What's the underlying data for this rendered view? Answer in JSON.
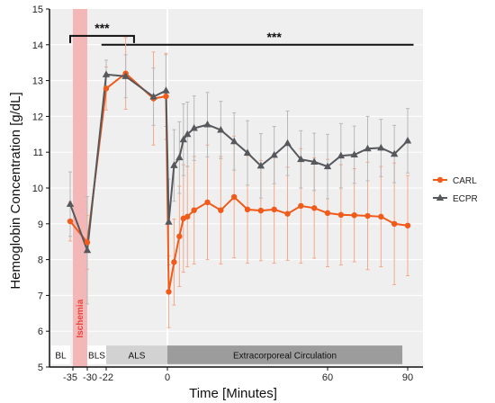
{
  "chart_data": {
    "type": "line",
    "xlabel": "Time  [Minutes]",
    "ylabel": "Hemoglobin Concentration [g/dL]",
    "ylim": [
      5,
      15
    ],
    "y_ticks": [
      5,
      6,
      7,
      8,
      9,
      10,
      11,
      12,
      13,
      14,
      15
    ],
    "x_tick_labels": [
      {
        "t": -35,
        "label": "-35"
      },
      {
        "t": -30,
        "label": "-30"
      },
      {
        "t": -22,
        "label": "-22"
      },
      {
        "t": 0,
        "label": "0"
      },
      {
        "t": 60,
        "label": "60"
      },
      {
        "t": 90,
        "label": "90"
      }
    ],
    "grid": true,
    "legend_position": "right",
    "series": [
      {
        "name": "CARL",
        "color": "#f05a1a",
        "marker": "circle",
        "points": [
          {
            "t": -36,
            "y": 9.07,
            "sd": 0.55
          },
          {
            "t": -30,
            "y": 8.48,
            "sd": 0.75
          },
          {
            "t": -22,
            "y": 12.78,
            "sd": 0.6
          },
          {
            "t": -15,
            "y": 13.2,
            "sd": 1.0
          },
          {
            "t": -5,
            "y": 12.5,
            "sd": 1.3
          },
          {
            "t": -0.5,
            "y": 12.56,
            "sd": 1.2
          },
          {
            "t": 0.5,
            "y": 7.1,
            "sd": 1.0
          },
          {
            "t": 2.5,
            "y": 7.93,
            "sd": 1.2
          },
          {
            "t": 4.5,
            "y": 8.65,
            "sd": 1.4
          },
          {
            "t": 6,
            "y": 9.15,
            "sd": 1.5
          },
          {
            "t": 7.5,
            "y": 9.2,
            "sd": 1.4
          },
          {
            "t": 10,
            "y": 9.38,
            "sd": 1.5
          },
          {
            "t": 15,
            "y": 9.6,
            "sd": 1.6
          },
          {
            "t": 20,
            "y": 9.38,
            "sd": 1.5
          },
          {
            "t": 25,
            "y": 9.75,
            "sd": 1.7
          },
          {
            "t": 30,
            "y": 9.4,
            "sd": 1.5
          },
          {
            "t": 35,
            "y": 9.37,
            "sd": 1.4
          },
          {
            "t": 40,
            "y": 9.4,
            "sd": 1.5
          },
          {
            "t": 45,
            "y": 9.28,
            "sd": 1.3
          },
          {
            "t": 50,
            "y": 9.5,
            "sd": 1.6
          },
          {
            "t": 55,
            "y": 9.44,
            "sd": 1.4
          },
          {
            "t": 60,
            "y": 9.3,
            "sd": 1.5
          },
          {
            "t": 65,
            "y": 9.25,
            "sd": 1.4
          },
          {
            "t": 70,
            "y": 9.24,
            "sd": 1.3
          },
          {
            "t": 75,
            "y": 9.22,
            "sd": 1.5
          },
          {
            "t": 80,
            "y": 9.2,
            "sd": 1.4
          },
          {
            "t": 85,
            "y": 9.0,
            "sd": 1.7
          },
          {
            "t": 90,
            "y": 8.95,
            "sd": 1.4
          }
        ]
      },
      {
        "name": "ECPR",
        "color": "#56585c",
        "marker": "triangle",
        "points": [
          {
            "t": -36,
            "y": 9.55,
            "sd": 0.9
          },
          {
            "t": -30,
            "y": 8.26,
            "sd": 1.5
          },
          {
            "t": -22,
            "y": 13.17,
            "sd": 0.4
          },
          {
            "t": -15,
            "y": 13.12,
            "sd": 0.6
          },
          {
            "t": -5,
            "y": 12.55,
            "sd": 0.8
          },
          {
            "t": -0.5,
            "y": 12.72,
            "sd": 1.0
          },
          {
            "t": 0.5,
            "y": 9.05,
            "sd": 1.2
          },
          {
            "t": 2.5,
            "y": 10.63,
            "sd": 1.0
          },
          {
            "t": 4.5,
            "y": 10.85,
            "sd": 1.0
          },
          {
            "t": 6,
            "y": 11.35,
            "sd": 1.0
          },
          {
            "t": 7.5,
            "y": 11.5,
            "sd": 0.9
          },
          {
            "t": 10,
            "y": 11.67,
            "sd": 0.9
          },
          {
            "t": 15,
            "y": 11.77,
            "sd": 0.9
          },
          {
            "t": 20,
            "y": 11.62,
            "sd": 0.8
          },
          {
            "t": 25,
            "y": 11.3,
            "sd": 0.8
          },
          {
            "t": 30,
            "y": 10.98,
            "sd": 0.9
          },
          {
            "t": 35,
            "y": 10.62,
            "sd": 0.9
          },
          {
            "t": 40,
            "y": 10.92,
            "sd": 0.8
          },
          {
            "t": 45,
            "y": 11.25,
            "sd": 0.9
          },
          {
            "t": 50,
            "y": 10.8,
            "sd": 0.8
          },
          {
            "t": 55,
            "y": 10.73,
            "sd": 0.8
          },
          {
            "t": 60,
            "y": 10.6,
            "sd": 0.9
          },
          {
            "t": 65,
            "y": 10.9,
            "sd": 0.9
          },
          {
            "t": 70,
            "y": 10.93,
            "sd": 0.8
          },
          {
            "t": 75,
            "y": 11.1,
            "sd": 0.9
          },
          {
            "t": 80,
            "y": 11.12,
            "sd": 0.8
          },
          {
            "t": 85,
            "y": 10.95,
            "sd": 0.8
          },
          {
            "t": 90,
            "y": 11.32,
            "sd": 0.9
          }
        ]
      }
    ],
    "phases": [
      {
        "label": "BL",
        "from": -44,
        "to": -36,
        "color": "#ffffff",
        "text_color": "#111111"
      },
      {
        "label": "BLS",
        "from": -30,
        "to": -22,
        "color": "#ffffff",
        "text_color": "#111111"
      },
      {
        "label": "ALS",
        "from": -22,
        "to": 0,
        "color": "#d2d2d2",
        "text_color": "#111111"
      },
      {
        "label": "Extracorporeal Circulation",
        "from": 0,
        "to": 88,
        "color": "#9c9c9c",
        "text_color": "#111111"
      }
    ],
    "ischemia": {
      "label": "Ischemia",
      "from": -35,
      "to": -30,
      "color": "#f4b7b7",
      "text_color": "#e6463c"
    },
    "significance": [
      {
        "label": "***",
        "from": -36,
        "to": -12
      },
      {
        "label": "***",
        "from": -24,
        "to": 92
      }
    ]
  }
}
